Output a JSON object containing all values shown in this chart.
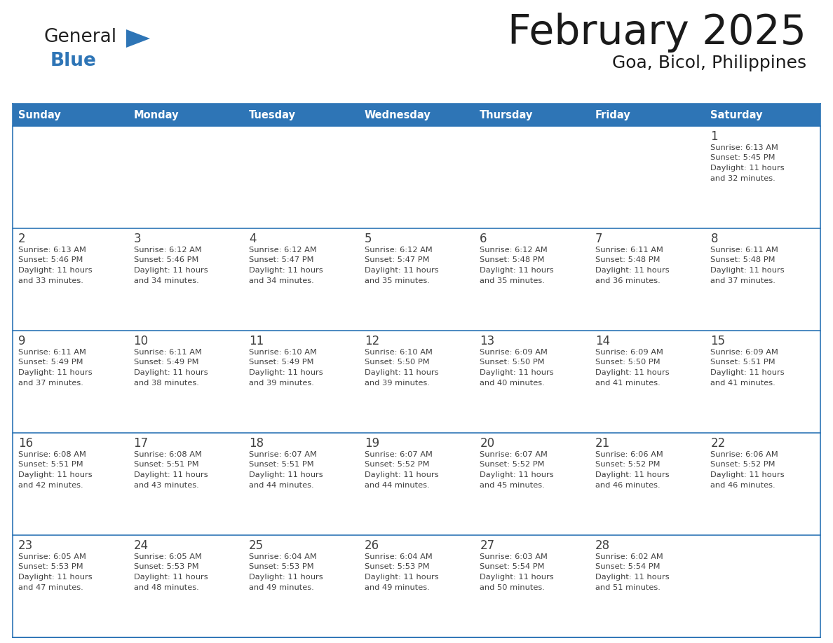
{
  "title": "February 2025",
  "subtitle": "Goa, Bicol, Philippines",
  "days_of_week": [
    "Sunday",
    "Monday",
    "Tuesday",
    "Wednesday",
    "Thursday",
    "Friday",
    "Saturday"
  ],
  "header_bg": "#2E75B6",
  "header_text": "#FFFFFF",
  "cell_bg_white": "#FFFFFF",
  "border_color": "#2E75B6",
  "text_color": "#404040",
  "title_color": "#1a1a1a",
  "calendar_data": [
    [
      null,
      null,
      null,
      null,
      null,
      null,
      {
        "day": 1,
        "sunrise": "6:13 AM",
        "sunset": "5:45 PM",
        "daylight": "11 hours and 32 minutes."
      }
    ],
    [
      {
        "day": 2,
        "sunrise": "6:13 AM",
        "sunset": "5:46 PM",
        "daylight": "11 hours and 33 minutes."
      },
      {
        "day": 3,
        "sunrise": "6:12 AM",
        "sunset": "5:46 PM",
        "daylight": "11 hours and 34 minutes."
      },
      {
        "day": 4,
        "sunrise": "6:12 AM",
        "sunset": "5:47 PM",
        "daylight": "11 hours and 34 minutes."
      },
      {
        "day": 5,
        "sunrise": "6:12 AM",
        "sunset": "5:47 PM",
        "daylight": "11 hours and 35 minutes."
      },
      {
        "day": 6,
        "sunrise": "6:12 AM",
        "sunset": "5:48 PM",
        "daylight": "11 hours and 35 minutes."
      },
      {
        "day": 7,
        "sunrise": "6:11 AM",
        "sunset": "5:48 PM",
        "daylight": "11 hours and 36 minutes."
      },
      {
        "day": 8,
        "sunrise": "6:11 AM",
        "sunset": "5:48 PM",
        "daylight": "11 hours and 37 minutes."
      }
    ],
    [
      {
        "day": 9,
        "sunrise": "6:11 AM",
        "sunset": "5:49 PM",
        "daylight": "11 hours and 37 minutes."
      },
      {
        "day": 10,
        "sunrise": "6:11 AM",
        "sunset": "5:49 PM",
        "daylight": "11 hours and 38 minutes."
      },
      {
        "day": 11,
        "sunrise": "6:10 AM",
        "sunset": "5:49 PM",
        "daylight": "11 hours and 39 minutes."
      },
      {
        "day": 12,
        "sunrise": "6:10 AM",
        "sunset": "5:50 PM",
        "daylight": "11 hours and 39 minutes."
      },
      {
        "day": 13,
        "sunrise": "6:09 AM",
        "sunset": "5:50 PM",
        "daylight": "11 hours and 40 minutes."
      },
      {
        "day": 14,
        "sunrise": "6:09 AM",
        "sunset": "5:50 PM",
        "daylight": "11 hours and 41 minutes."
      },
      {
        "day": 15,
        "sunrise": "6:09 AM",
        "sunset": "5:51 PM",
        "daylight": "11 hours and 41 minutes."
      }
    ],
    [
      {
        "day": 16,
        "sunrise": "6:08 AM",
        "sunset": "5:51 PM",
        "daylight": "11 hours and 42 minutes."
      },
      {
        "day": 17,
        "sunrise": "6:08 AM",
        "sunset": "5:51 PM",
        "daylight": "11 hours and 43 minutes."
      },
      {
        "day": 18,
        "sunrise": "6:07 AM",
        "sunset": "5:51 PM",
        "daylight": "11 hours and 44 minutes."
      },
      {
        "day": 19,
        "sunrise": "6:07 AM",
        "sunset": "5:52 PM",
        "daylight": "11 hours and 44 minutes."
      },
      {
        "day": 20,
        "sunrise": "6:07 AM",
        "sunset": "5:52 PM",
        "daylight": "11 hours and 45 minutes."
      },
      {
        "day": 21,
        "sunrise": "6:06 AM",
        "sunset": "5:52 PM",
        "daylight": "11 hours and 46 minutes."
      },
      {
        "day": 22,
        "sunrise": "6:06 AM",
        "sunset": "5:52 PM",
        "daylight": "11 hours and 46 minutes."
      }
    ],
    [
      {
        "day": 23,
        "sunrise": "6:05 AM",
        "sunset": "5:53 PM",
        "daylight": "11 hours and 47 minutes."
      },
      {
        "day": 24,
        "sunrise": "6:05 AM",
        "sunset": "5:53 PM",
        "daylight": "11 hours and 48 minutes."
      },
      {
        "day": 25,
        "sunrise": "6:04 AM",
        "sunset": "5:53 PM",
        "daylight": "11 hours and 49 minutes."
      },
      {
        "day": 26,
        "sunrise": "6:04 AM",
        "sunset": "5:53 PM",
        "daylight": "11 hours and 49 minutes."
      },
      {
        "day": 27,
        "sunrise": "6:03 AM",
        "sunset": "5:54 PM",
        "daylight": "11 hours and 50 minutes."
      },
      {
        "day": 28,
        "sunrise": "6:02 AM",
        "sunset": "5:54 PM",
        "daylight": "11 hours and 51 minutes."
      },
      null
    ]
  ],
  "logo_text_general": "General",
  "logo_text_blue": "Blue",
  "logo_color_general": "#222222",
  "logo_color_blue": "#2E75B6",
  "logo_triangle_color": "#2E75B6"
}
